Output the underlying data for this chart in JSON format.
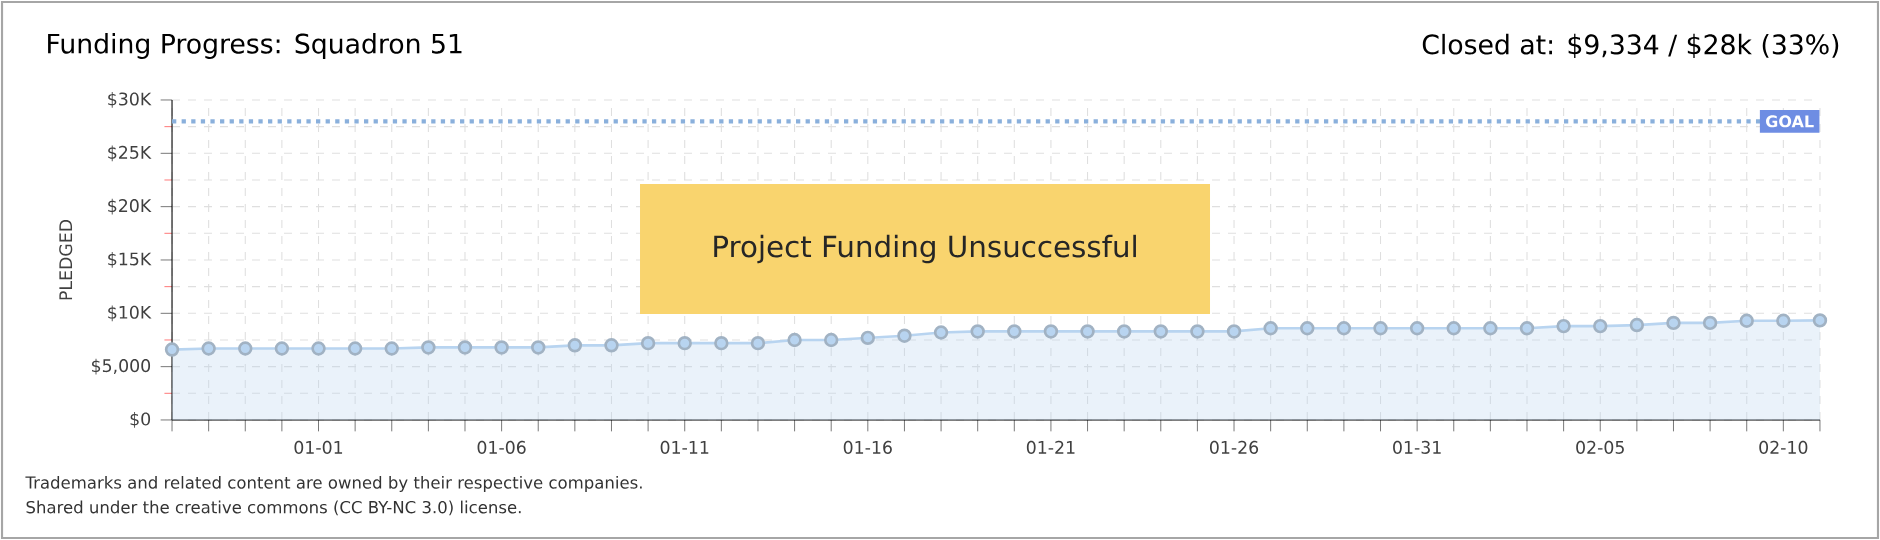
{
  "chart_data": {
    "type": "area",
    "title": "Funding Progress: Squadron 51",
    "subtitle": "Closed at: $9,334 / $28k (33%)",
    "ylabel": "PLEDGED",
    "categories": [
      null,
      null,
      null,
      null,
      "01-01",
      null,
      null,
      null,
      null,
      "01-06",
      null,
      null,
      null,
      null,
      "01-11",
      null,
      null,
      null,
      null,
      "01-16",
      null,
      null,
      null,
      null,
      "01-21",
      null,
      null,
      null,
      null,
      "01-26",
      null,
      null,
      null,
      null,
      "01-31",
      null,
      null,
      null,
      null,
      "02-05",
      null,
      null,
      null,
      null,
      "02-10",
      null
    ],
    "series": [
      {
        "color": "#b8d4f0",
        "values": [
          6600,
          6700,
          6700,
          6700,
          6700,
          6700,
          6700,
          6800,
          6800,
          6800,
          6800,
          7000,
          7000,
          7200,
          7200,
          7200,
          7200,
          7500,
          7500,
          7700,
          7900,
          8200,
          8300,
          8300,
          8300,
          8300,
          8300,
          8300,
          8300,
          8300,
          8600,
          8600,
          8600,
          8600,
          8600,
          8600,
          8600,
          8600,
          8800,
          8800,
          8900,
          9100,
          9100,
          9300,
          9300,
          9334
        ]
      }
    ],
    "ylim": [
      0,
      30000
    ],
    "yticks": [
      {
        "value": 0,
        "label": "$0"
      },
      {
        "value": 5000,
        "label": "$5,000"
      },
      {
        "value": 10000,
        "label": "$10K"
      },
      {
        "value": 15000,
        "label": "$15K"
      },
      {
        "value": 20000,
        "label": "$20K"
      },
      {
        "value": 25000,
        "label": "$25K"
      },
      {
        "value": 30000,
        "label": "$30K"
      }
    ],
    "grid": true,
    "marker": "circle",
    "line_style": "solid",
    "ref_lines": [
      {
        "axis": "y",
        "value": 28000,
        "label": "GOAL",
        "color": "#8ab0dc",
        "line_style": "dotted"
      }
    ],
    "annotations": [
      "Project Funding Unsuccessful",
      "Trademarks and related content are owned by their respective companies.",
      "Shared under the creative commons (CC BY-NC 3.0) license."
    ]
  }
}
